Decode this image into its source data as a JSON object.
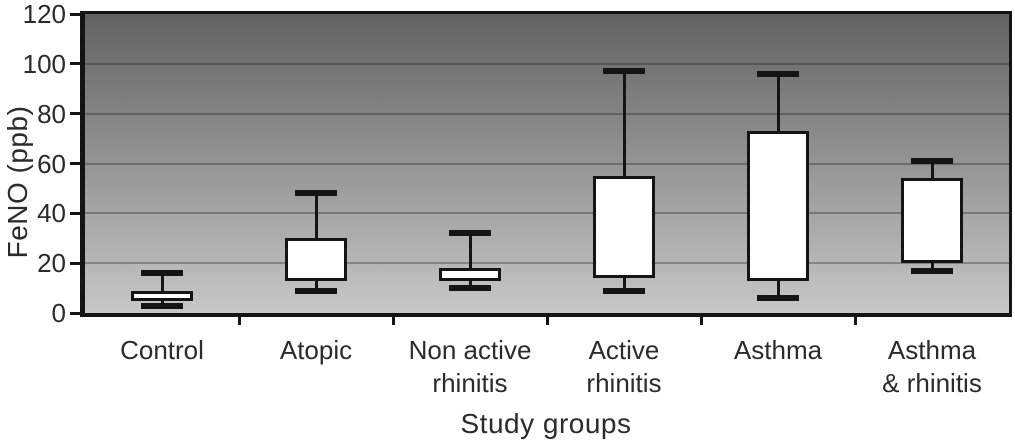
{
  "chart_data": {
    "type": "boxplot",
    "title": "",
    "xlabel": "Study groups",
    "ylabel": "FeNO (ppb)",
    "ylim": [
      0,
      120
    ],
    "yticks": [
      0,
      20,
      40,
      60,
      80,
      100,
      120
    ],
    "grid": true,
    "legend": false,
    "median_shown": false,
    "categories": [
      "Control",
      "Atopic",
      "Non active\nrhinitis",
      "Active\nrhinitis",
      "Asthma",
      "Asthma\n& rhinitis"
    ],
    "series": [
      {
        "name": "Control",
        "whisker_low": 3,
        "q1": 5,
        "q3": 9,
        "whisker_high": 16
      },
      {
        "name": "Atopic",
        "whisker_low": 9,
        "q1": 13,
        "q3": 30,
        "whisker_high": 48
      },
      {
        "name": "Non active rhinitis",
        "whisker_low": 10,
        "q1": 13,
        "q3": 18,
        "whisker_high": 32
      },
      {
        "name": "Active rhinitis",
        "whisker_low": 9,
        "q1": 14,
        "q3": 55,
        "whisker_high": 97
      },
      {
        "name": "Asthma",
        "whisker_low": 6,
        "q1": 13,
        "q3": 73,
        "whisker_high": 96
      },
      {
        "name": "Asthma & rhinitis",
        "whisker_low": 17,
        "q1": 20,
        "q3": 54,
        "whisker_high": 61
      }
    ],
    "colors": {
      "plot_bg_top": "#626262",
      "plot_bg_bottom": "#c7c7c7",
      "box_fill": "#ffffff",
      "axis_line": "#141414",
      "text": "#2b2b2b"
    }
  }
}
